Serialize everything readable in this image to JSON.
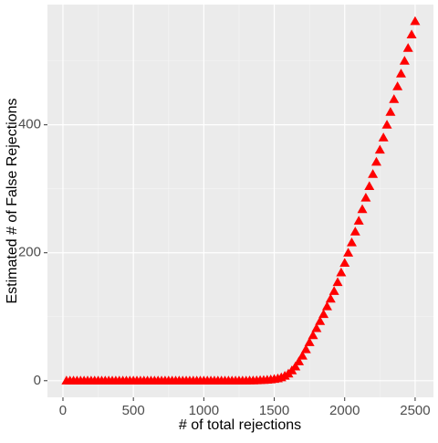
{
  "chart_data": {
    "type": "scatter",
    "x_label": "# of total rejections",
    "y_label": "Estimated # of False Rejections",
    "x": [
      25,
      50,
      75,
      100,
      125,
      150,
      175,
      200,
      225,
      250,
      275,
      300,
      325,
      350,
      375,
      400,
      425,
      450,
      475,
      500,
      525,
      550,
      575,
      600,
      625,
      650,
      675,
      700,
      725,
      750,
      775,
      800,
      825,
      850,
      875,
      900,
      925,
      950,
      975,
      1000,
      1025,
      1050,
      1075,
      1100,
      1125,
      1150,
      1175,
      1200,
      1225,
      1250,
      1275,
      1300,
      1325,
      1350,
      1375,
      1400,
      1425,
      1450,
      1475,
      1500,
      1525,
      1550,
      1575,
      1600,
      1625,
      1650,
      1675,
      1700,
      1725,
      1750,
      1775,
      1800,
      1825,
      1850,
      1875,
      1900,
      1925,
      1950,
      1975,
      2000,
      2025,
      2050,
      2075,
      2100,
      2125,
      2150,
      2175,
      2200,
      2225,
      2250,
      2275,
      2300,
      2325,
      2350,
      2375,
      2400,
      2425,
      2450,
      2475,
      2500
    ],
    "values": [
      0,
      0,
      0,
      0,
      0,
      0,
      0,
      0,
      0,
      0,
      0,
      0,
      0,
      0,
      0,
      0,
      0,
      0,
      0,
      0,
      0,
      0,
      0,
      0,
      0,
      0,
      0,
      0,
      0,
      0,
      0,
      0,
      0,
      0,
      0,
      0,
      0,
      0,
      0,
      0,
      0,
      0,
      0,
      0,
      0,
      0,
      0,
      0,
      0,
      0,
      0,
      0,
      0.2,
      0.3,
      0.5,
      0.7,
      1,
      1.3,
      1.8,
      2.5,
      3.5,
      5,
      7.5,
      11,
      16,
      22,
      30,
      39,
      49,
      60,
      71,
      82,
      93,
      104,
      116,
      128,
      140,
      154,
      169,
      184,
      200,
      216,
      233,
      250,
      268,
      286,
      304,
      323,
      342,
      361,
      380,
      400,
      420,
      440,
      460,
      480,
      500,
      520,
      541,
      562
    ],
    "color": "#ff0000",
    "marker": "triangle",
    "xlim": [
      -110,
      2630
    ],
    "ylim": [
      -26,
      588
    ],
    "xticks": [
      0,
      500,
      1000,
      1500,
      2000,
      2500
    ],
    "yticks": [
      0,
      200,
      400
    ],
    "xminor": [
      250,
      750,
      1250,
      1750,
      2250
    ],
    "yminor": [
      100,
      300,
      500
    ],
    "grid": true
  }
}
